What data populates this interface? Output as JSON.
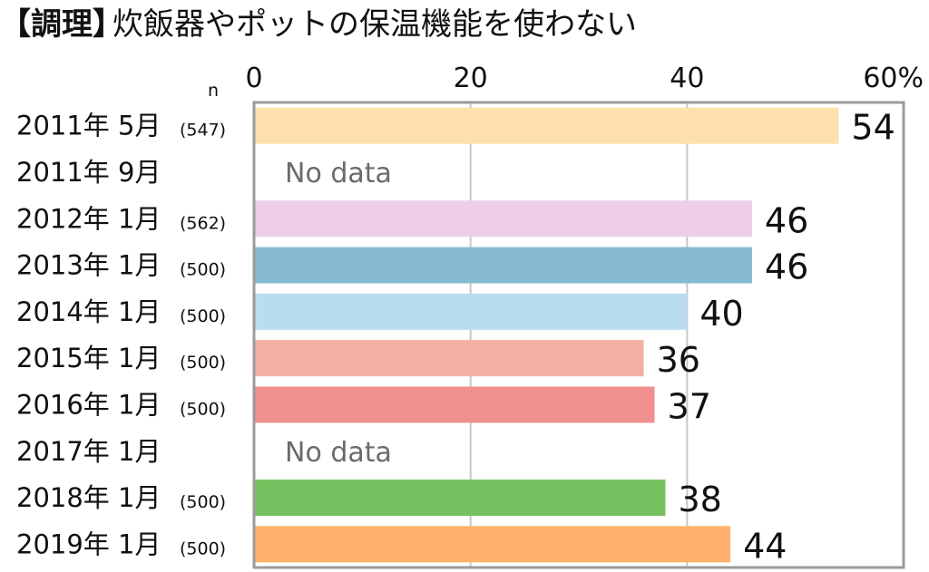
{
  "chart_data": {
    "type": "bar",
    "orientation": "horizontal",
    "title_tag": "【調理】",
    "title": "炊飯器やポットの保温機能を使わない",
    "n_label": "n",
    "xlim": [
      0,
      60
    ],
    "xticks": [
      {
        "value": 0,
        "label": "0"
      },
      {
        "value": 20,
        "label": "20"
      },
      {
        "value": 40,
        "label": "40"
      },
      {
        "value": 60,
        "label": "60%"
      }
    ],
    "grid": true,
    "categories": [
      {
        "label": "2011年 5月",
        "n": "(547)",
        "value": 54,
        "value_label": "54",
        "color": "#fde0ab"
      },
      {
        "label": "2011年 9月",
        "n": "",
        "value": null,
        "value_label": "No data",
        "color": ""
      },
      {
        "label": "2012年 1月",
        "n": "(562)",
        "value": 46,
        "value_label": "46",
        "color": "#eecfe7"
      },
      {
        "label": "2013年 1月",
        "n": "(500)",
        "value": 46,
        "value_label": "46",
        "color": "#86bad2"
      },
      {
        "label": "2014年 1月",
        "n": "(500)",
        "value": 40,
        "value_label": "40",
        "color": "#b9ddef"
      },
      {
        "label": "2015年 1月",
        "n": "(500)",
        "value": 36,
        "value_label": "36",
        "color": "#f2b0a2"
      },
      {
        "label": "2016年 1月",
        "n": "(500)",
        "value": 37,
        "value_label": "37",
        "color": "#ef8f8e"
      },
      {
        "label": "2017年 1月",
        "n": "",
        "value": null,
        "value_label": "No data",
        "color": ""
      },
      {
        "label": "2018年 1月",
        "n": "(500)",
        "value": 38,
        "value_label": "38",
        "color": "#77c060"
      },
      {
        "label": "2019年 1月",
        "n": "(500)",
        "value": 44,
        "value_label": "44",
        "color": "#ffb06a"
      }
    ]
  }
}
